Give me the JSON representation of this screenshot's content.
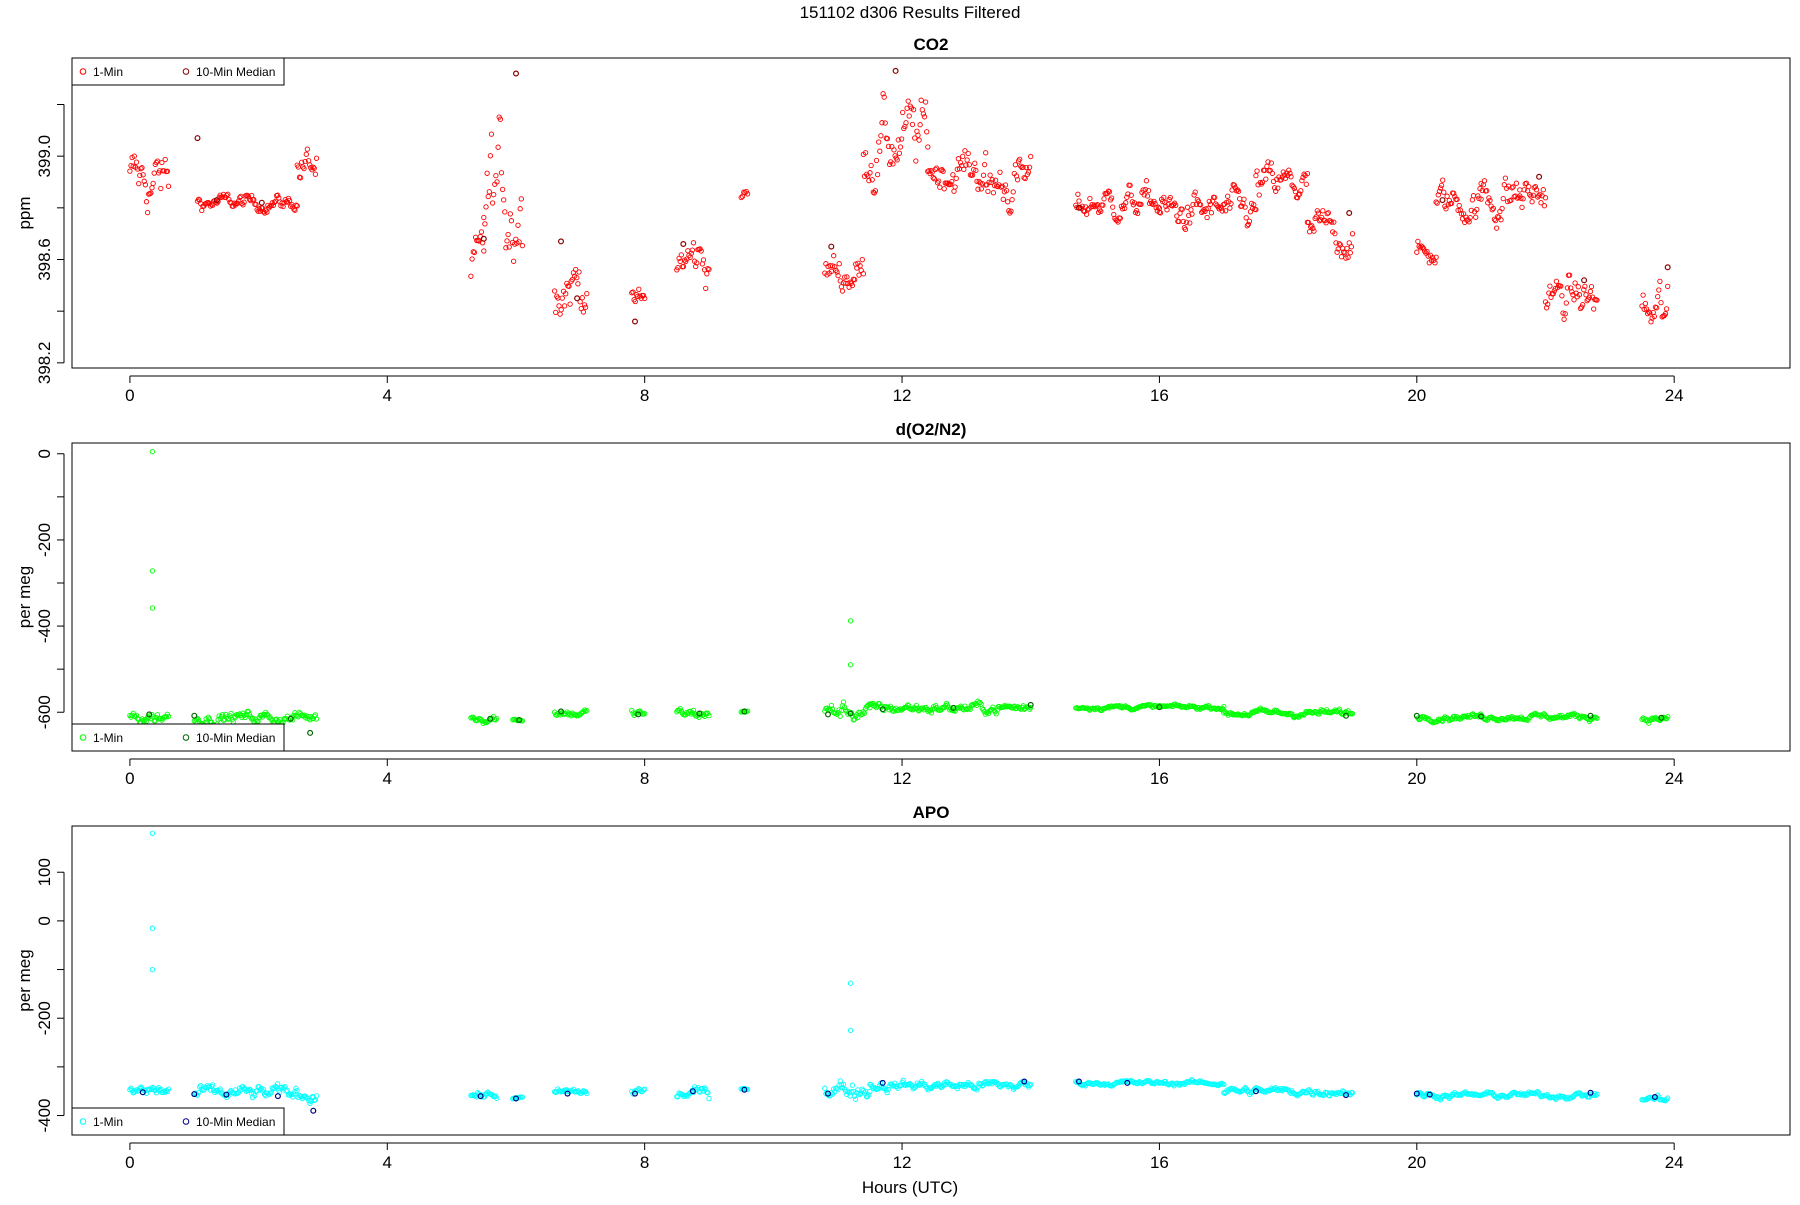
{
  "page": {
    "title": "151102   d306   Results Filtered",
    "xlabel": "Hours (UTC)"
  },
  "chart_data": [
    {
      "type": "scatter",
      "title": "CO2",
      "xlabel": "Hours (UTC)",
      "ylabel": "ppm",
      "xlim": [
        -0.9,
        25.8
      ],
      "ylim": [
        398.18,
        399.38
      ],
      "xticks": [
        0,
        4,
        8,
        12,
        16,
        20,
        24
      ],
      "yticks": [
        398.2,
        398.6,
        399.0
      ],
      "ytick_labels": [
        "398.2",
        "398.6",
        "399.0"
      ],
      "yminor": [
        398.4,
        398.8,
        399.2
      ],
      "legend": {
        "position": "top-left",
        "entries": [
          "1-Min",
          "10-Min Median"
        ]
      },
      "series": [
        {
          "name": "1-Min",
          "color": "#ff0000",
          "segments": [
            [
              0.0,
              0.6,
              398.9,
              0.12,
              398.78,
              399.02
            ],
            [
              1.05,
              2.6,
              398.82,
              0.03,
              398.78,
              398.88
            ],
            [
              2.6,
              2.9,
              398.95,
              0.08,
              398.8,
              399.22
            ],
            [
              5.3,
              5.5,
              398.55,
              0.12,
              398.4,
              398.8
            ],
            [
              5.5,
              6.1,
              398.85,
              0.25,
              398.45,
              399.32
            ],
            [
              6.6,
              7.1,
              398.52,
              0.12,
              398.36,
              398.7
            ],
            [
              7.8,
              8.0,
              398.42,
              0.06,
              398.34,
              398.52
            ],
            [
              8.5,
              9.0,
              398.6,
              0.1,
              398.46,
              398.8
            ],
            [
              9.5,
              9.6,
              398.85,
              0.02,
              398.82,
              398.88
            ],
            [
              10.8,
              11.4,
              398.55,
              0.08,
              398.45,
              398.75
            ],
            [
              11.4,
              12.4,
              399.05,
              0.15,
              398.75,
              399.34
            ],
            [
              12.4,
              13.3,
              398.95,
              0.08,
              398.8,
              399.12
            ],
            [
              13.3,
              14.0,
              398.9,
              0.1,
              398.78,
              399.12
            ],
            [
              14.7,
              16.0,
              398.82,
              0.06,
              398.7,
              398.98
            ],
            [
              16.0,
              17.5,
              398.78,
              0.07,
              398.68,
              398.95
            ],
            [
              17.5,
              18.3,
              398.88,
              0.08,
              398.72,
              399.02
            ],
            [
              18.3,
              19.0,
              398.7,
              0.08,
              398.6,
              398.9
            ],
            [
              20.0,
              20.3,
              398.62,
              0.05,
              398.55,
              398.78
            ],
            [
              20.3,
              21.0,
              398.82,
              0.07,
              398.7,
              399.07
            ],
            [
              21.0,
              21.6,
              398.85,
              0.1,
              398.7,
              399.0
            ],
            [
              21.6,
              22.0,
              398.85,
              0.08,
              398.72,
              398.98
            ],
            [
              22.0,
              22.8,
              398.45,
              0.08,
              398.35,
              398.6
            ],
            [
              23.5,
              23.9,
              398.38,
              0.12,
              398.22,
              398.62
            ]
          ]
        },
        {
          "name": "10-Min Median",
          "color": "#8b0000",
          "points": [
            [
              1.05,
              399.07
            ],
            [
              1.35,
              398.83
            ],
            [
              2.05,
              398.82
            ],
            [
              5.5,
              398.68
            ],
            [
              6.0,
              399.32
            ],
            [
              6.7,
              398.67
            ],
            [
              6.95,
              398.45
            ],
            [
              7.85,
              398.36
            ],
            [
              8.6,
              398.66
            ],
            [
              10.9,
              398.65
            ],
            [
              11.9,
              399.33
            ],
            [
              14.75,
              398.8
            ],
            [
              18.95,
              398.78
            ],
            [
              20.4,
              398.83
            ],
            [
              21.9,
              398.92
            ],
            [
              22.6,
              398.52
            ],
            [
              23.9,
              398.57
            ]
          ]
        }
      ]
    },
    {
      "type": "scatter",
      "title": "d(O2/N2)",
      "xlabel": "Hours (UTC)",
      "ylabel": "per meg",
      "xlim": [
        -0.9,
        25.8
      ],
      "ylim": [
        -690,
        25
      ],
      "xticks": [
        0,
        4,
        8,
        12,
        16,
        20,
        24
      ],
      "yticks": [
        -600,
        -400,
        -200,
        0
      ],
      "ytick_labels": [
        "-600",
        "-400",
        "-200",
        "0"
      ],
      "yminor": [
        -500,
        -300,
        -100
      ],
      "legend": {
        "position": "bottom-left",
        "entries": [
          "1-Min",
          "10-Min Median"
        ]
      },
      "series": [
        {
          "name": "1-Min",
          "color": "#00ff00",
          "segments": [
            [
              0.0,
              0.6,
              -610,
              15,
              -630,
              -570
            ],
            [
              1.0,
              2.9,
              -612,
              14,
              -665,
              -548
            ],
            [
              5.3,
              5.7,
              -612,
              10,
              -640,
              -595
            ],
            [
              5.95,
              6.1,
              -618,
              3,
              -625,
              -612
            ],
            [
              6.6,
              7.1,
              -602,
              10,
              -620,
              -580
            ],
            [
              7.8,
              8.0,
              -602,
              12,
              -625,
              -545
            ],
            [
              8.5,
              9.0,
              -605,
              12,
              -640,
              -580
            ],
            [
              9.5,
              9.6,
              -598,
              3,
              -605,
              -592
            ],
            [
              10.8,
              11.5,
              -598,
              20,
              -640,
              -550
            ],
            [
              11.5,
              14.0,
              -590,
              12,
              -630,
              -560
            ],
            [
              14.7,
              17.0,
              -588,
              5,
              -605,
              -570
            ],
            [
              17.0,
              19.0,
              -602,
              8,
              -645,
              -585
            ],
            [
              20.0,
              22.8,
              -610,
              7,
              -630,
              -595
            ],
            [
              23.5,
              23.9,
              -615,
              7,
              -660,
              -600
            ]
          ],
          "outliers": [
            [
              0.35,
              5
            ],
            [
              0.35,
              -272
            ],
            [
              0.35,
              -358
            ],
            [
              11.2,
              -388
            ],
            [
              11.2,
              -490
            ]
          ]
        },
        {
          "name": "10-Min Median",
          "color": "#006400",
          "points": [
            [
              0.3,
              -605
            ],
            [
              1.0,
              -608
            ],
            [
              2.5,
              -615
            ],
            [
              2.8,
              -648
            ],
            [
              5.6,
              -615
            ],
            [
              6.05,
              -618
            ],
            [
              6.7,
              -598
            ],
            [
              7.9,
              -605
            ],
            [
              8.85,
              -603
            ],
            [
              9.55,
              -598
            ],
            [
              10.85,
              -605
            ],
            [
              11.2,
              -603
            ],
            [
              11.7,
              -593
            ],
            [
              12.8,
              -590
            ],
            [
              14.0,
              -583
            ],
            [
              16.0,
              -588
            ],
            [
              18.9,
              -608
            ],
            [
              20.0,
              -608
            ],
            [
              21.0,
              -610
            ],
            [
              22.7,
              -608
            ],
            [
              23.8,
              -613
            ]
          ]
        }
      ]
    },
    {
      "type": "scatter",
      "title": "APO",
      "xlabel": "Hours (UTC)",
      "ylabel": "per meg",
      "xlim": [
        -0.9,
        25.8
      ],
      "ylim": [
        -440,
        195
      ],
      "xticks": [
        0,
        4,
        8,
        12,
        16,
        20,
        24
      ],
      "yticks": [
        -400,
        -200,
        0,
        100
      ],
      "ytick_labels": [
        "-400",
        "-200",
        "0",
        "100"
      ],
      "yminor": [
        -300,
        -100
      ],
      "legend": {
        "position": "bottom-left",
        "entries": [
          "1-Min",
          "10-Min Median"
        ]
      },
      "series": [
        {
          "name": "1-Min",
          "color": "#00ffff",
          "segments": [
            [
              0.0,
              0.6,
              -350,
              15,
              -380,
              -310
            ],
            [
              1.0,
              2.9,
              -355,
              14,
              -410,
              -290
            ],
            [
              5.3,
              5.7,
              -358,
              8,
              -380,
              -345
            ],
            [
              5.95,
              6.1,
              -365,
              3,
              -370,
              -360
            ],
            [
              6.6,
              7.1,
              -352,
              8,
              -370,
              -335
            ],
            [
              7.8,
              8.0,
              -352,
              12,
              -380,
              -290
            ],
            [
              8.5,
              9.0,
              -355,
              12,
              -390,
              -330
            ],
            [
              9.5,
              9.6,
              -345,
              3,
              -350,
              -340
            ],
            [
              10.8,
              11.5,
              -345,
              18,
              -380,
              -280
            ],
            [
              11.5,
              14.0,
              -338,
              10,
              -370,
              -320
            ],
            [
              14.7,
              17.0,
              -333,
              5,
              -355,
              -320
            ],
            [
              17.0,
              19.0,
              -350,
              8,
              -385,
              -330
            ],
            [
              20.0,
              22.8,
              -358,
              6,
              -375,
              -345
            ],
            [
              23.5,
              23.9,
              -365,
              7,
              -410,
              -350
            ]
          ],
          "outliers": [
            [
              0.35,
              180
            ],
            [
              0.35,
              -15
            ],
            [
              0.35,
              -100
            ],
            [
              11.2,
              -128
            ],
            [
              11.2,
              -225
            ]
          ]
        },
        {
          "name": "10-Min Median",
          "color": "#00008b",
          "points": [
            [
              0.2,
              -352
            ],
            [
              1.0,
              -356
            ],
            [
              1.5,
              -357
            ],
            [
              2.3,
              -360
            ],
            [
              2.85,
              -390
            ],
            [
              5.45,
              -360
            ],
            [
              6.0,
              -365
            ],
            [
              6.8,
              -355
            ],
            [
              7.85,
              -355
            ],
            [
              8.75,
              -350
            ],
            [
              9.55,
              -347
            ],
            [
              10.85,
              -355
            ],
            [
              11.7,
              -333
            ],
            [
              13.9,
              -330
            ],
            [
              14.75,
              -330
            ],
            [
              15.5,
              -333
            ],
            [
              17.5,
              -350
            ],
            [
              18.9,
              -358
            ],
            [
              20.0,
              -355
            ],
            [
              20.2,
              -357
            ],
            [
              22.7,
              -353
            ],
            [
              23.7,
              -362
            ]
          ]
        }
      ]
    }
  ]
}
